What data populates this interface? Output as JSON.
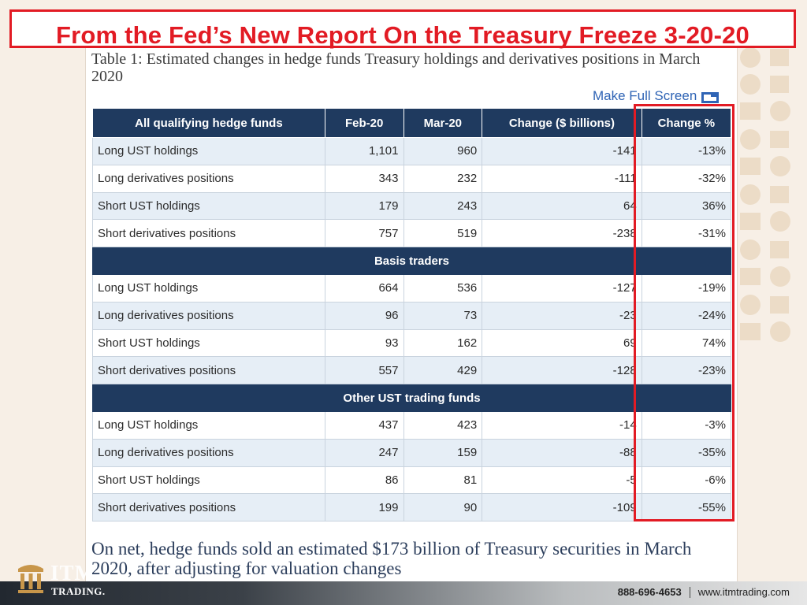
{
  "banner": {
    "title": "From the Fed’s New Report On the Treasury Freeze 3-20-20"
  },
  "report": {
    "caption": "Table 1: Estimated changes in hedge funds Treasury holdings and derivatives positions in March 2020",
    "full_screen_label": "Make Full Screen",
    "summary": "On net, hedge funds sold an estimated $173 billion of Treasury securities in March 2020, after adjusting for valuation changes"
  },
  "table": {
    "headers": [
      "All qualifying hedge funds",
      "Feb-20",
      "Mar-20",
      "Change ($ billions)",
      "Change %"
    ],
    "groups": [
      {
        "title": "",
        "rows": [
          {
            "label": "Long UST holdings",
            "feb": "1,101",
            "mar": "960",
            "change": "-141",
            "pct": "-13%"
          },
          {
            "label": "Long derivatives positions",
            "feb": "343",
            "mar": "232",
            "change": "-111",
            "pct": "-32%"
          },
          {
            "label": "Short UST holdings",
            "feb": "179",
            "mar": "243",
            "change": "64",
            "pct": "36%"
          },
          {
            "label": "Short derivatives positions",
            "feb": "757",
            "mar": "519",
            "change": "-238",
            "pct": "-31%"
          }
        ]
      },
      {
        "title": "Basis traders",
        "rows": [
          {
            "label": "Long UST holdings",
            "feb": "664",
            "mar": "536",
            "change": "-127",
            "pct": "-19%"
          },
          {
            "label": "Long derivatives positions",
            "feb": "96",
            "mar": "73",
            "change": "-23",
            "pct": "-24%"
          },
          {
            "label": "Short UST holdings",
            "feb": "93",
            "mar": "162",
            "change": "69",
            "pct": "74%"
          },
          {
            "label": "Short derivatives positions",
            "feb": "557",
            "mar": "429",
            "change": "-128",
            "pct": "-23%"
          }
        ]
      },
      {
        "title": "Other UST trading funds",
        "rows": [
          {
            "label": "Long UST holdings",
            "feb": "437",
            "mar": "423",
            "change": "-14",
            "pct": "-3%"
          },
          {
            "label": "Long derivatives positions",
            "feb": "247",
            "mar": "159",
            "change": "-88",
            "pct": "-35%"
          },
          {
            "label": "Short UST holdings",
            "feb": "86",
            "mar": "81",
            "change": "-5",
            "pct": "-6%"
          },
          {
            "label": "Short derivatives positions",
            "feb": "199",
            "mar": "90",
            "change": "-109",
            "pct": "-55%"
          }
        ]
      }
    ]
  },
  "footer": {
    "logo_text": "ITM",
    "logo_subtext": "TRADING.",
    "phone": "888-696-4653",
    "website": "www.itmtrading.com"
  },
  "colors": {
    "accent_red": "#e21b24",
    "header_navy": "#1f3a5f",
    "row_stripe": "#e6eef6",
    "link_blue": "#2f64b5"
  }
}
